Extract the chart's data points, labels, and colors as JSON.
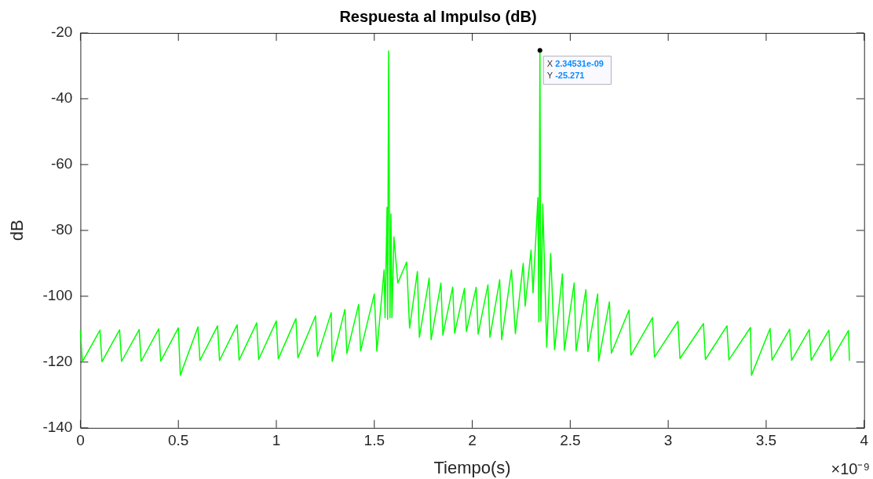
{
  "chart_data": {
    "type": "line",
    "title": "Respuesta al Impulso (dB)",
    "xlabel": "Tiempo(s)",
    "ylabel": "dB",
    "xlim": [
      0,
      4
    ],
    "xticks": [
      0,
      0.5,
      1,
      1.5,
      2,
      2.5,
      3,
      3.5,
      4
    ],
    "ylim": [
      -140,
      -20
    ],
    "yticks": [
      -140,
      -120,
      -100,
      -80,
      -60,
      -40,
      -20
    ],
    "grid": false,
    "legend": false,
    "marker": "none",
    "line_style": "solid",
    "annotations": [
      "×10⁻⁹",
      {
        "text": "X 2.34531e-09\nY -25.271",
        "x": 2.34531,
        "y": -25.271
      }
    ],
    "series": [
      {
        "color": "#00ff00",
        "x": [
          0,
          0.01,
          0.1,
          0.11,
          0.2,
          0.21,
          0.3,
          0.31,
          0.4,
          0.41,
          0.5,
          0.51,
          0.6,
          0.61,
          0.7,
          0.71,
          0.8,
          0.81,
          0.9,
          0.91,
          1.0,
          1.01,
          1.1,
          1.11,
          1.2,
          1.21,
          1.28,
          1.285,
          1.35,
          1.36,
          1.42,
          1.43,
          1.5,
          1.513,
          1.55,
          1.555,
          1.565,
          1.568,
          1.573,
          1.58,
          1.585,
          1.59,
          1.6,
          1.62,
          1.665,
          1.68,
          1.72,
          1.73,
          1.78,
          1.79,
          1.84,
          1.85,
          1.9,
          1.91,
          1.96,
          1.97,
          2.02,
          2.03,
          2.08,
          2.09,
          2.14,
          2.15,
          2.2,
          2.22,
          2.26,
          2.27,
          2.3,
          2.31,
          2.335,
          2.34,
          2.34531,
          2.35,
          2.36,
          2.38,
          2.4,
          2.42,
          2.46,
          2.47,
          2.52,
          2.53,
          2.58,
          2.59,
          2.64,
          2.645,
          2.7,
          2.71,
          2.8,
          2.81,
          2.92,
          2.93,
          3.05,
          3.06,
          3.18,
          3.19,
          3.3,
          3.31,
          3.42,
          3.425,
          3.52,
          3.53,
          3.62,
          3.63,
          3.72,
          3.73,
          3.82,
          3.83,
          3.92,
          3.925
        ],
        "values": [
          -110.4,
          -119.9,
          -110.3,
          -119.9,
          -110.2,
          -119.8,
          -110.1,
          -119.8,
          -109.9,
          -119.7,
          -109.6,
          -124.0,
          -109.3,
          -119.5,
          -109.0,
          -119.5,
          -108.7,
          -119.4,
          -108.1,
          -119.2,
          -107.5,
          -119.0,
          -106.8,
          -118.7,
          -106.0,
          -118.3,
          -105.0,
          -119.8,
          -104.0,
          -117.4,
          -102.5,
          -116.6,
          -99.3,
          -116.7,
          -92,
          -106.5,
          -73,
          -107,
          -25.5,
          -106.5,
          -75,
          -106.5,
          -82,
          -96,
          -89.6,
          -109.7,
          -92.5,
          -112.5,
          -94.5,
          -113.2,
          -96,
          -111.8,
          -97.2,
          -111.2,
          -97.6,
          -110.7,
          -97.3,
          -111.5,
          -96.5,
          -112.5,
          -95,
          -113.2,
          -92,
          -111.4,
          -90,
          -103,
          -86,
          -99,
          -70,
          -107.8,
          -25.3,
          -107.5,
          -72,
          -115.5,
          -87,
          -116.2,
          -93.2,
          -116.4,
          -96,
          -116.6,
          -98,
          -116.8,
          -99.3,
          -119.7,
          -101.7,
          -117.3,
          -104.2,
          -117.9,
          -106.5,
          -118.5,
          -107.6,
          -118.9,
          -108.3,
          -119.2,
          -109,
          -119.3,
          -109.5,
          -124.0,
          -109.8,
          -119.4,
          -110,
          -119.5,
          -110.1,
          -119.5,
          -110.3,
          -119.6,
          -110.4,
          -119.6
        ]
      }
    ]
  }
}
